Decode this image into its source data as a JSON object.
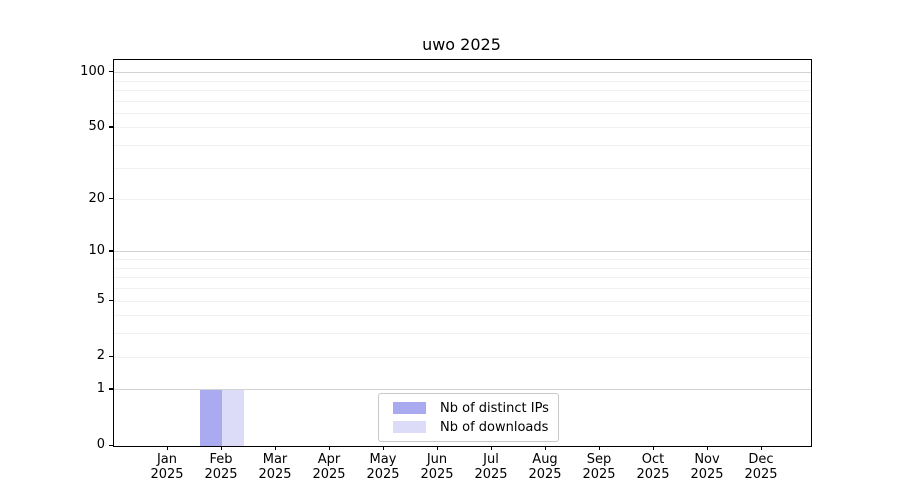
{
  "chart_data": {
    "type": "bar",
    "title": "uwo 2025",
    "year": "2025",
    "categories": [
      "Jan",
      "Feb",
      "Mar",
      "Apr",
      "May",
      "Jun",
      "Jul",
      "Aug",
      "Sep",
      "Oct",
      "Nov",
      "Dec"
    ],
    "series": [
      {
        "name": "Nb of distinct IPs",
        "color": "#aaaaf0",
        "values": [
          0,
          1,
          0,
          0,
          0,
          0,
          0,
          0,
          0,
          0,
          0,
          0
        ]
      },
      {
        "name": "Nb of downloads",
        "color": "#dcdcf8",
        "values": [
          0,
          1,
          0,
          0,
          0,
          0,
          0,
          0,
          0,
          0,
          0,
          0
        ]
      }
    ],
    "xlabel": "",
    "ylabel": "",
    "y_scale": "log1p",
    "y_ticks": [
      0,
      1,
      2,
      5,
      10,
      20,
      50,
      100
    ],
    "ylim": [
      0,
      117
    ],
    "grid": {
      "on": true,
      "major": [
        1,
        10,
        100
      ],
      "minor": [
        2,
        3,
        4,
        5,
        6,
        7,
        8,
        9,
        20,
        30,
        40,
        50,
        60,
        70,
        80,
        90
      ],
      "major_color": "#d3d3d3",
      "minor_color": "#f0f0f0"
    },
    "legend_position": "lower center"
  }
}
